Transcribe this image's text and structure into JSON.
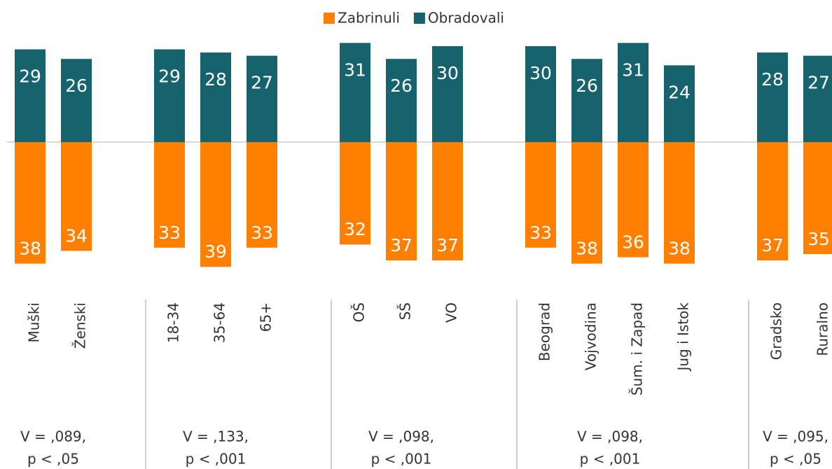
{
  "chart_data": {
    "type": "diverging-bar",
    "groups": [
      {
        "categories": [
          "Muški",
          "Ženski"
        ],
        "stats": [
          "V = ,089,",
          "p < ,05"
        ]
      },
      {
        "categories": [
          "18-34",
          "35-64",
          "65+"
        ],
        "stats": [
          "V = ,133,",
          "p < ,001"
        ]
      },
      {
        "categories": [
          "OŠ",
          "SŠ",
          "VO"
        ],
        "stats": [
          "V = ,098,",
          "p < ,001"
        ]
      },
      {
        "categories": [
          "Beograd",
          "Vojvodina",
          "Šum. i Zapad",
          "Jug i Istok"
        ],
        "stats": [
          "V = ,098,",
          "p < ,001"
        ]
      },
      {
        "categories": [
          "Gradsko",
          "Ruralno"
        ],
        "stats": [
          "V = ,095,",
          "p < ,05"
        ]
      }
    ],
    "series": [
      {
        "name": "Zabrinuli",
        "color": "#ff8000",
        "values": [
          38,
          34,
          33,
          39,
          33,
          32,
          37,
          37,
          33,
          38,
          36,
          38,
          37,
          35
        ]
      },
      {
        "name": "Obradovali",
        "color": "#17636d",
        "values": [
          29,
          26,
          29,
          28,
          27,
          31,
          26,
          30,
          30,
          26,
          31,
          24,
          28,
          27
        ]
      }
    ]
  }
}
